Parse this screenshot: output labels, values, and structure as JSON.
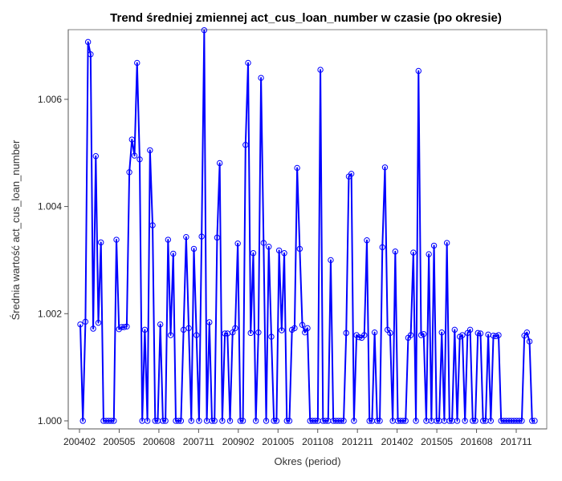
{
  "chart_data": {
    "type": "line",
    "title": "Trend średniej zmiennej act_cus_loan_number w czasie (po okresie)",
    "xlabel": "Okres (period)",
    "ylabel": "Średnia wartość act_cus_loan_number",
    "x_ticks": [
      "200402",
      "200505",
      "200608",
      "200711",
      "200902",
      "201005",
      "201108",
      "201211",
      "201402",
      "201505",
      "201608",
      "201711"
    ],
    "y_ticks": [
      "1.000",
      "1.002",
      "1.004",
      "1.006"
    ],
    "ylim": [
      0.99985,
      1.0073
    ],
    "grid": false,
    "series_color": "#0000ff",
    "series": [
      {
        "values": [
          1.0018,
          1.0,
          1.00185,
          1.00707,
          1.00684,
          1.00172,
          1.00494,
          1.00183,
          1.00333,
          1.0,
          1.0,
          1.0,
          1.0,
          1.0,
          1.00338,
          1.00171,
          1.00175,
          1.00175,
          1.00176,
          1.00464,
          1.00525,
          1.00495,
          1.00668,
          1.00488,
          1.0,
          1.0017,
          1.0,
          1.00505,
          1.00365,
          1.0,
          1.0,
          1.0018,
          1.0,
          1.0,
          1.00338,
          1.0016,
          1.00312,
          1.0,
          1.0,
          1.0,
          1.0017,
          1.00343,
          1.00173,
          1.0,
          1.00321,
          1.0016,
          1.0,
          1.00344,
          1.00729,
          1.0,
          1.00184,
          1.0,
          1.0,
          1.00342,
          1.00481,
          1.0,
          1.00163,
          1.00163,
          1.0,
          1.00165,
          1.00173,
          1.00331,
          1.0,
          1.0,
          1.00515,
          1.00668,
          1.00164,
          1.00313,
          1.0,
          1.00165,
          1.0064,
          1.00332,
          1.0,
          1.00325,
          1.00157,
          1.0,
          1.0,
          1.00318,
          1.00169,
          1.00313,
          1.0,
          1.0,
          1.0017,
          1.00173,
          1.00472,
          1.00321,
          1.00179,
          1.00165,
          1.00173,
          1.0,
          1.0,
          1.0,
          1.0,
          1.00655,
          1.0,
          1.0,
          1.0,
          1.003,
          1.0,
          1.0,
          1.0,
          1.0,
          1.0,
          1.00164,
          1.00456,
          1.00461,
          1.0,
          1.0016,
          1.00156,
          1.00155,
          1.0016,
          1.00337,
          1.0,
          1.0,
          1.00165,
          1.0,
          1.0,
          1.00324,
          1.00473,
          1.0017,
          1.00164,
          1.0,
          1.00316,
          1.0,
          1.0,
          1.0,
          1.0,
          1.00155,
          1.0016,
          1.00314,
          1.0,
          1.00653,
          1.0016,
          1.00162,
          1.0,
          1.00311,
          1.0,
          1.00327,
          1.0,
          1.0,
          1.00165,
          1.0,
          1.00332,
          1.0,
          1.0,
          1.0017,
          1.0,
          1.00157,
          1.0016,
          1.0,
          1.00164,
          1.0017,
          1.0,
          1.0,
          1.00164,
          1.00163,
          1.0,
          1.0,
          1.00161,
          1.0,
          1.00159,
          1.00158,
          1.0016,
          1.0,
          1.0,
          1.0,
          1.0,
          1.0,
          1.0,
          1.0,
          1.0,
          1.0,
          1.00159,
          1.00165,
          1.00148,
          1.0,
          1.0
        ]
      }
    ]
  }
}
